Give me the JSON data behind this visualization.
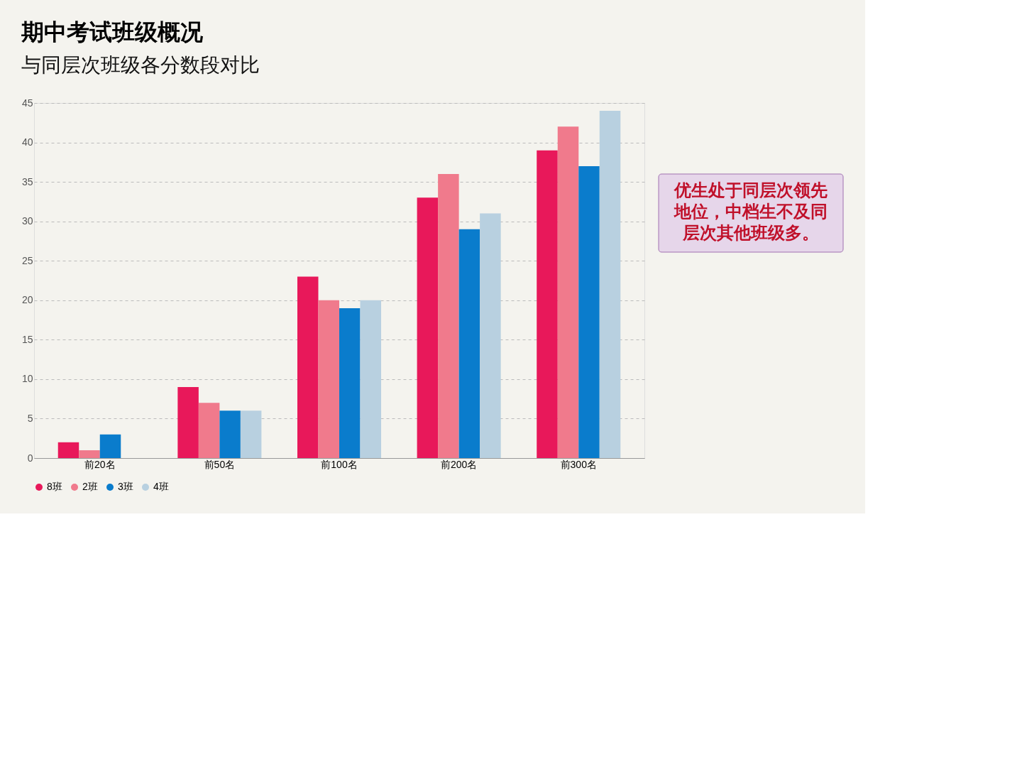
{
  "chart_data": {
    "type": "bar",
    "title": "期中考试班级概况",
    "subtitle": "与同层次班级各分数段对比",
    "categories": [
      "前20名",
      "前50名",
      "前100名",
      "前200名",
      "前300名"
    ],
    "series": [
      {
        "name": "8班",
        "color": "#e8185a",
        "values": [
          2,
          9,
          23,
          33,
          39
        ]
      },
      {
        "name": "2班",
        "color": "#f07a8c",
        "values": [
          1,
          7,
          20,
          36,
          42
        ]
      },
      {
        "name": "3班",
        "color": "#0a7ccc",
        "values": [
          3,
          6,
          19,
          29,
          37
        ]
      },
      {
        "name": "4班",
        "color": "#b8d0e0",
        "values": [
          0,
          6,
          20,
          31,
          44
        ]
      }
    ],
    "ylim": [
      0,
      45
    ],
    "yticks": [
      0,
      5,
      10,
      15,
      20,
      25,
      30,
      35,
      40,
      45
    ],
    "grid": "y",
    "legend": "bottom",
    "annotations": [
      "优生处于同层次领先地位，中档生不及同层次其他班级多。"
    ]
  }
}
